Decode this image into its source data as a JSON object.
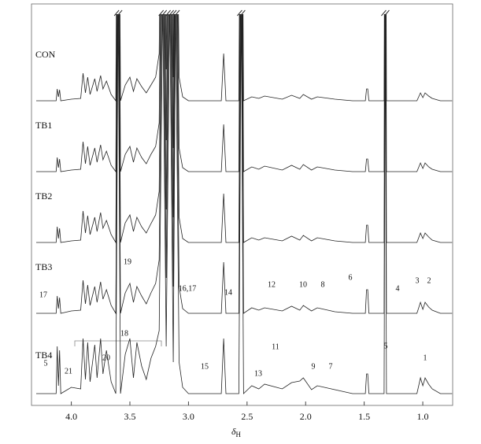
{
  "chart_data": {
    "type": "line",
    "x_label": {
      "symbol": "δ",
      "subscript": "H"
    },
    "xlim": [
      4.34,
      0.745
    ],
    "xticks": [
      {
        "value": 4.0,
        "label": "4.0"
      },
      3.5,
      {
        "value": 3.0,
        "label": "3.0"
      },
      2.5,
      {
        "value": 2.0,
        "label": "2.0"
      },
      1.5,
      {
        "value": 1.0,
        "label": "1.0"
      }
    ],
    "x": [
      4.3,
      4.13,
      4.12,
      4.11,
      4.1,
      4.09,
      4.0,
      3.92,
      3.9,
      3.88,
      3.86,
      3.84,
      3.8,
      3.78,
      3.75,
      3.73,
      3.7,
      3.66,
      3.62,
      3.6,
      3.58,
      3.54,
      3.5,
      3.47,
      3.44,
      3.4,
      3.36,
      3.32,
      3.28,
      3.25,
      3.22,
      3.19,
      3.16,
      3.13,
      3.11,
      3.08,
      3.05,
      3.0,
      2.72,
      2.7,
      2.68,
      2.57,
      2.55,
      2.53,
      2.46,
      2.4,
      2.35,
      2.2,
      2.12,
      2.05,
      2.02,
      1.95,
      1.9,
      1.75,
      1.6,
      1.49,
      1.48,
      1.47,
      1.46,
      1.33,
      1.32,
      1.31,
      1.05,
      1.02,
      1.0,
      0.98,
      0.95,
      0.92,
      0.85,
      0.75
    ],
    "series": [
      {
        "name": "CON",
        "color": "#222222",
        "values": [
          0,
          0,
          15,
          5,
          14,
          0,
          2,
          3,
          35,
          10,
          30,
          8,
          28,
          12,
          32,
          15,
          25,
          8,
          0,
          500,
          0,
          20,
          30,
          12,
          28,
          18,
          10,
          20,
          30,
          60,
          500,
          40,
          500,
          30,
          500,
          30,
          5,
          0,
          0,
          60,
          0,
          0,
          500,
          0,
          5,
          3,
          6,
          2,
          7,
          3,
          8,
          2,
          5,
          2,
          0,
          0,
          15,
          15,
          0,
          0,
          500,
          0,
          0,
          10,
          4,
          10,
          6,
          3,
          0,
          0
        ]
      },
      {
        "name": "TB1",
        "color": "#222222",
        "values": [
          0,
          0,
          18,
          5,
          16,
          0,
          2,
          3,
          38,
          10,
          32,
          8,
          30,
          12,
          34,
          15,
          26,
          8,
          0,
          500,
          0,
          22,
          32,
          12,
          30,
          18,
          10,
          22,
          32,
          62,
          500,
          40,
          500,
          30,
          500,
          30,
          5,
          0,
          0,
          60,
          0,
          0,
          500,
          0,
          6,
          3,
          7,
          2,
          8,
          3,
          9,
          2,
          6,
          2,
          0,
          0,
          16,
          16,
          0,
          0,
          500,
          0,
          0,
          11,
          4,
          11,
          6,
          3,
          0,
          0
        ]
      },
      {
        "name": "TB2",
        "color": "#222222",
        "values": [
          0,
          0,
          20,
          5,
          18,
          0,
          2,
          3,
          40,
          12,
          34,
          10,
          32,
          14,
          38,
          18,
          28,
          10,
          0,
          500,
          0,
          25,
          35,
          14,
          32,
          20,
          12,
          24,
          35,
          65,
          500,
          42,
          500,
          32,
          500,
          32,
          5,
          0,
          0,
          62,
          0,
          0,
          500,
          0,
          6,
          3,
          6,
          2,
          8,
          3,
          9,
          2,
          6,
          2,
          0,
          0,
          22,
          22,
          0,
          0,
          500,
          0,
          0,
          12,
          5,
          12,
          7,
          3,
          0,
          0
        ]
      },
      {
        "name": "TB3",
        "color": "#222222",
        "values": [
          0,
          0,
          22,
          6,
          20,
          0,
          3,
          4,
          42,
          12,
          36,
          10,
          34,
          14,
          40,
          18,
          30,
          10,
          0,
          500,
          0,
          26,
          38,
          14,
          34,
          22,
          12,
          26,
          38,
          68,
          500,
          45,
          500,
          34,
          500,
          34,
          6,
          0,
          0,
          65,
          0,
          0,
          500,
          0,
          7,
          4,
          7,
          3,
          9,
          4,
          10,
          3,
          7,
          2,
          0,
          0,
          30,
          30,
          0,
          0,
          500,
          0,
          0,
          14,
          5,
          14,
          8,
          4,
          0,
          0
        ]
      },
      {
        "name": "TB4",
        "color": "#222222",
        "values": [
          0,
          0,
          60,
          10,
          55,
          0,
          8,
          6,
          70,
          18,
          65,
          15,
          62,
          20,
          70,
          25,
          55,
          15,
          0,
          500,
          0,
          50,
          70,
          20,
          65,
          35,
          18,
          45,
          60,
          80,
          500,
          60,
          500,
          40,
          500,
          40,
          8,
          0,
          0,
          70,
          0,
          0,
          500,
          0,
          10,
          6,
          12,
          6,
          14,
          16,
          20,
          5,
          10,
          5,
          0,
          0,
          25,
          25,
          0,
          0,
          500,
          0,
          0,
          20,
          10,
          20,
          12,
          6,
          0,
          0
        ]
      }
    ],
    "annotations": [
      "1",
      "2",
      "3",
      "4",
      "5",
      "5",
      "6",
      "7",
      "8",
      "9",
      "10",
      "11",
      "12",
      "13",
      "14",
      "15",
      "16,17",
      "17",
      "18",
      "19",
      "20",
      "21"
    ]
  }
}
